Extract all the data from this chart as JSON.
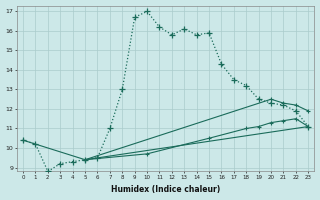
{
  "xlabel": "Humidex (Indice chaleur)",
  "xlim": [
    -0.5,
    23.5
  ],
  "ylim": [
    8.8,
    17.3
  ],
  "background_color": "#cce8e8",
  "grid_color": "#aacccc",
  "line_color": "#1a6b5a",
  "curve1_x": [
    0,
    1,
    2,
    3,
    4,
    5,
    6,
    7,
    8,
    9,
    10,
    11,
    12,
    13,
    14,
    15,
    16,
    17,
    18,
    19,
    20,
    21,
    22,
    23
  ],
  "curve1_y": [
    10.4,
    10.2,
    8.8,
    9.2,
    9.3,
    9.4,
    9.5,
    11.0,
    13.0,
    16.7,
    17.0,
    16.2,
    15.8,
    16.1,
    15.8,
    15.9,
    14.3,
    13.5,
    13.2,
    12.5,
    12.3,
    12.2,
    11.9,
    11.1
  ],
  "curve2_x": [
    5,
    23
  ],
  "curve2_y": [
    9.4,
    11.1
  ],
  "curve3_x": [
    5,
    20,
    21,
    22,
    23
  ],
  "curve3_y": [
    9.4,
    12.5,
    12.3,
    12.2,
    11.9
  ],
  "curve4_x": [
    0,
    5,
    10,
    15,
    18,
    19,
    20,
    21,
    22,
    23
  ],
  "curve4_y": [
    10.4,
    9.4,
    9.7,
    10.5,
    11.0,
    11.1,
    11.3,
    11.4,
    11.5,
    11.1
  ]
}
